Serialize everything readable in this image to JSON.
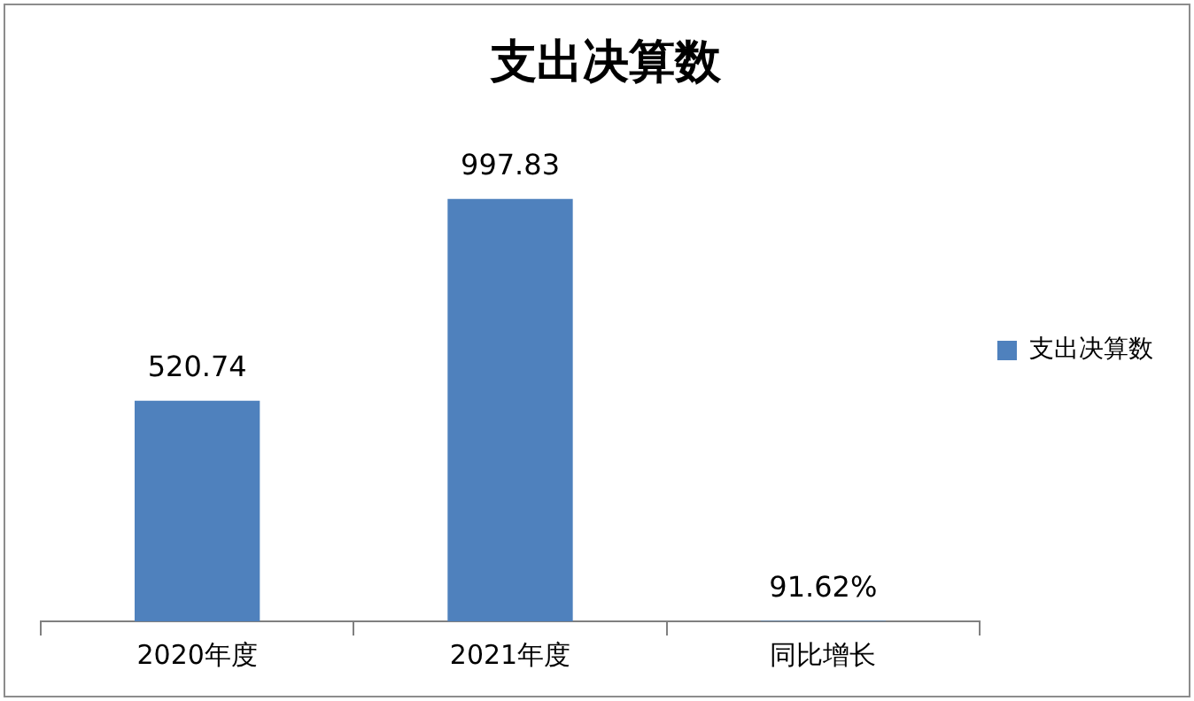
{
  "chart_data": {
    "type": "bar",
    "title": "支出决算数",
    "categories": [
      "2020年度",
      "2021年度",
      "同比增长"
    ],
    "series": [
      {
        "name": "支出决算数",
        "color": "#4f81bd",
        "values": [
          520.74,
          997.83,
          0.9162
        ],
        "value_labels": [
          "520.74",
          "997.83",
          "91.62%"
        ]
      }
    ],
    "legend": "right",
    "grid": false
  }
}
